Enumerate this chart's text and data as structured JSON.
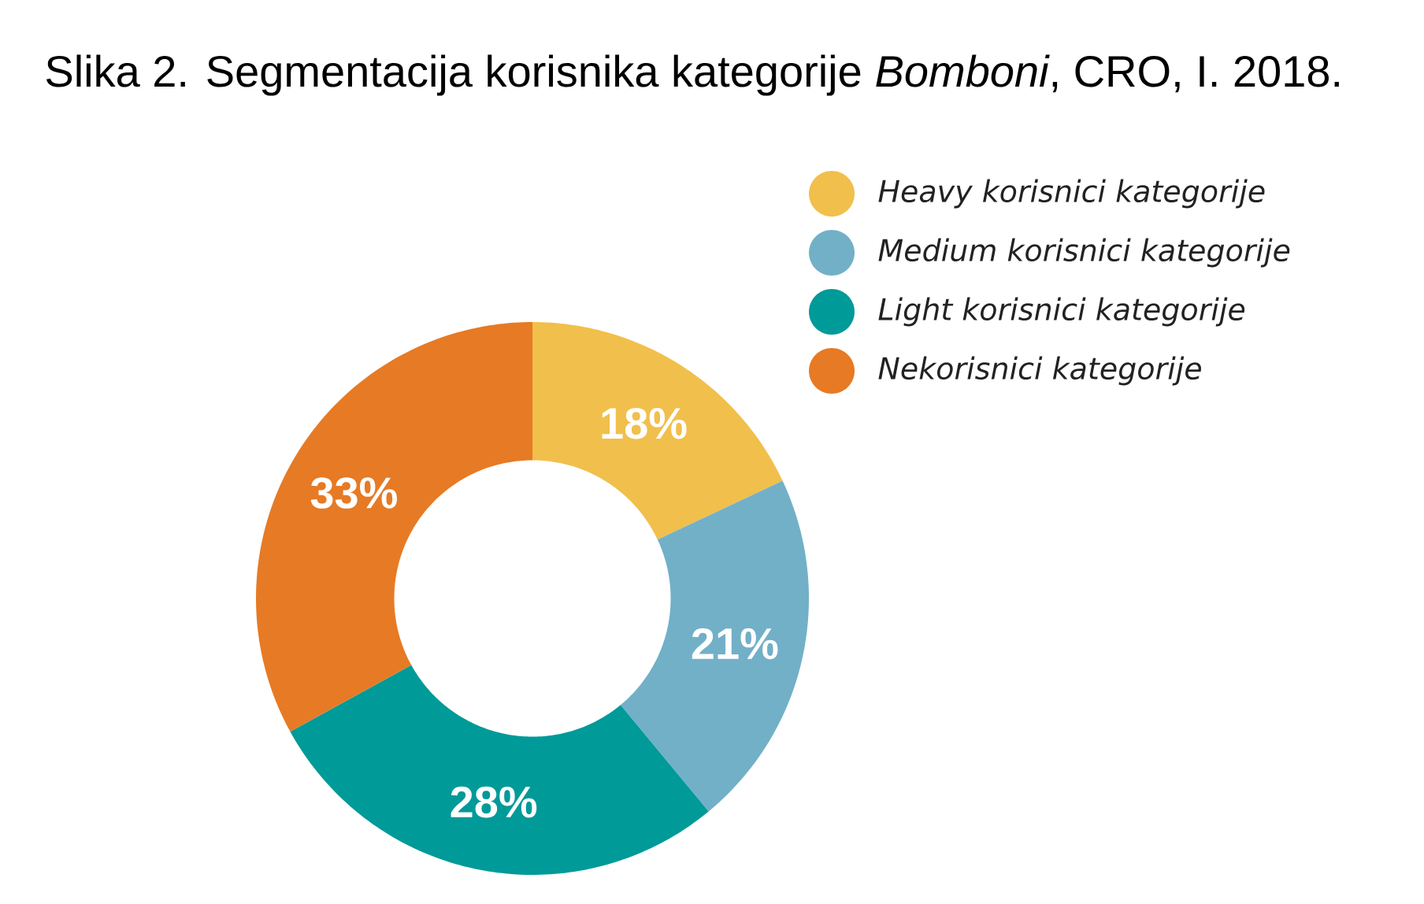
{
  "chart_data": {
    "type": "donut",
    "title": "Slika 2. Segmentacija korisnika  kategorije *Bomboni*, CRO, I. 2018.",
    "categories": [
      "Heavy korisnici kategorije",
      "Medium korisnici kategorije",
      "Light korisnici kategorije",
      "Nekorisnici kategorije"
    ],
    "values": [
      18,
      21,
      28,
      33
    ],
    "value_labels": [
      "18%",
      "21%",
      "28%",
      "33%"
    ],
    "colors": [
      "#f1bf4b",
      "#72b0c8",
      "#009a99",
      "#e77a24"
    ],
    "legend": "top right"
  }
}
